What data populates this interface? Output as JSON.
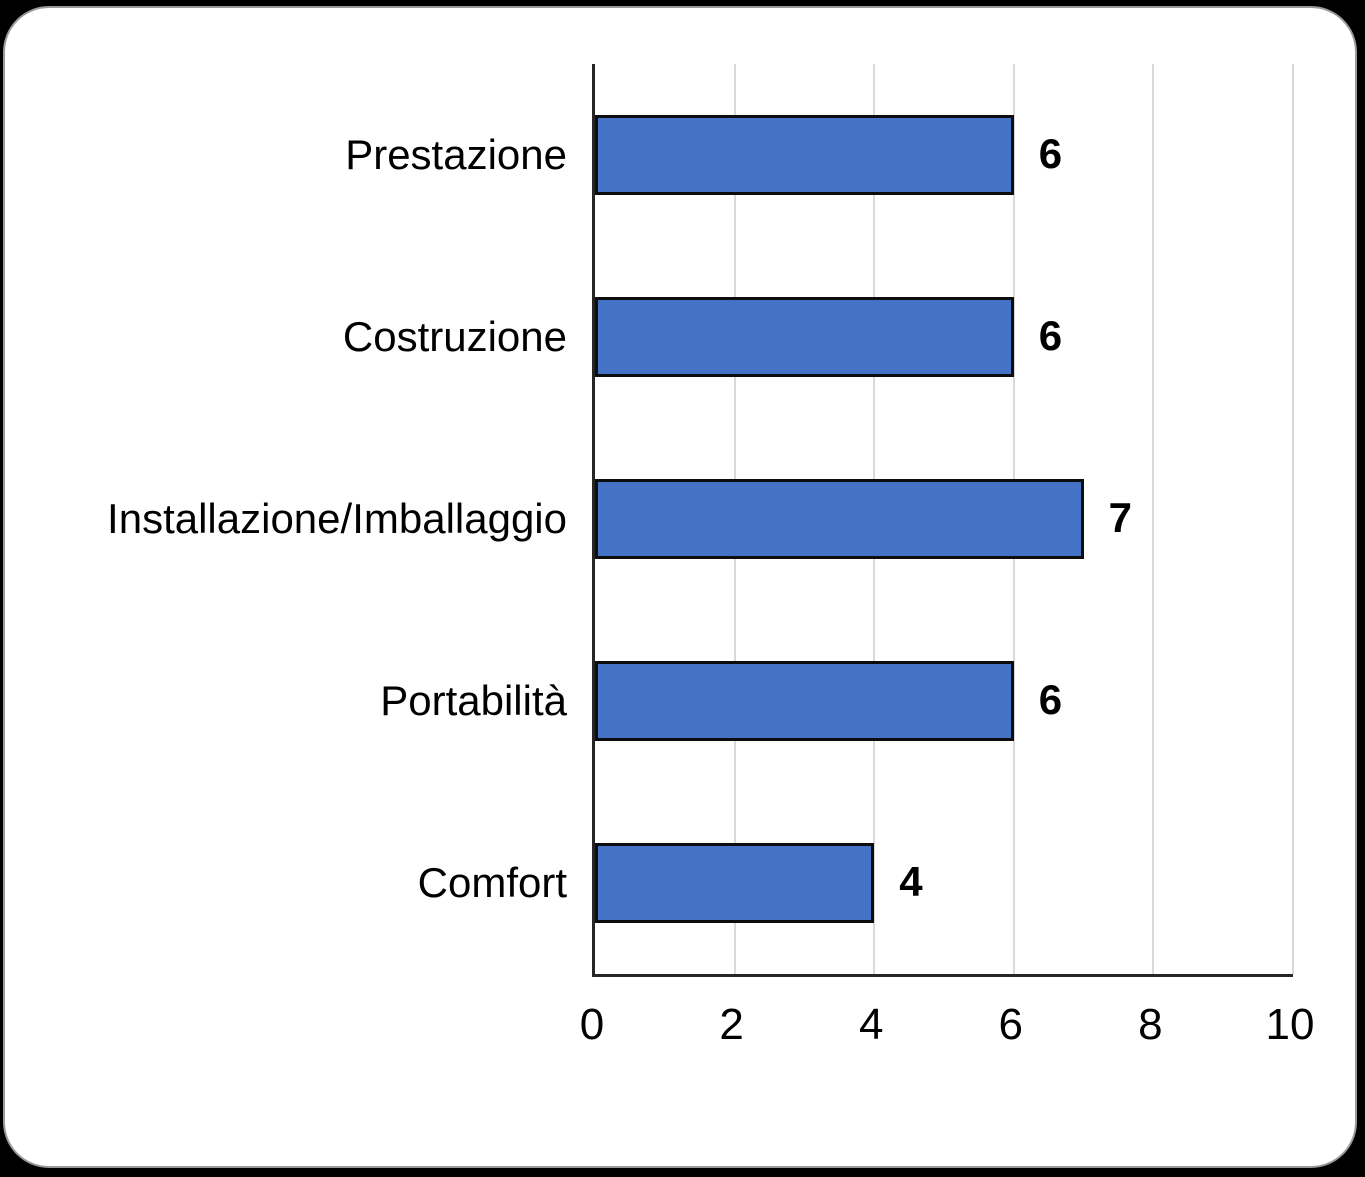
{
  "chart_data": {
    "type": "bar",
    "orientation": "horizontal",
    "title": "",
    "xlabel": "",
    "ylabel": "",
    "categories": [
      "Prestazione",
      "Costruzione",
      "Installazione/Imballaggio",
      "Portabilità",
      "Comfort"
    ],
    "values": [
      6,
      6,
      7,
      6,
      4
    ],
    "data_labels": [
      "6",
      "6",
      "7",
      "6",
      "4"
    ],
    "xlim": [
      0,
      10
    ],
    "x_ticks": [
      "0",
      "2",
      "4",
      "6",
      "8",
      "10"
    ],
    "grid": true,
    "legend": false,
    "colors": {
      "bar_fill": "#4472C4",
      "bar_border": "#0d0d0d",
      "gridline": "#d9d9d9",
      "axis_line": "#262626",
      "text": "#000000",
      "card_background": "#ffffff",
      "card_border": "#9a9a9a",
      "page_background": "#000000"
    }
  }
}
